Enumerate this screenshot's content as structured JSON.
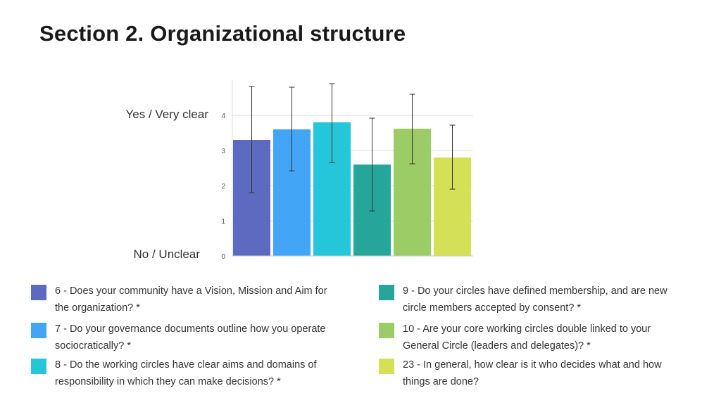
{
  "title": "Section 2. Organizational structure",
  "labels": {
    "top": "Yes / Very clear",
    "bottom": "No / Unclear"
  },
  "chart_data": {
    "type": "bar",
    "ylim": [
      0,
      4
    ],
    "yticks": [
      "0",
      "1",
      "2",
      "3",
      "4"
    ],
    "grid": true,
    "categories": [
      "6",
      "7",
      "8",
      "9",
      "10",
      "23"
    ],
    "values": [
      3.3,
      3.6,
      3.8,
      2.6,
      3.62,
      2.8
    ],
    "error_low": [
      1.8,
      2.42,
      2.65,
      1.28,
      2.62,
      1.9
    ],
    "error_high": [
      4.82,
      4.8,
      4.9,
      3.92,
      4.6,
      3.72
    ],
    "colors": [
      "#5c6bc0",
      "#42a5f5",
      "#26c6da",
      "#26a69a",
      "#9ccc65",
      "#d4e157"
    ]
  },
  "legend": [
    {
      "text": "6 - Does your community have a Vision, Mission and Aim for the organization? *",
      "color": "#5c6bc0"
    },
    {
      "text": "7 - Do your governance documents outline how you operate sociocratically? *",
      "color": "#42a5f5"
    },
    {
      "text": "8 - Do the working circles have clear aims and domains of responsibility in which they can make decisions? *",
      "color": "#26c6da"
    },
    {
      "text": "9 - Do your circles have defined membership, and are new circle members accepted by consent? *",
      "color": "#26a69a"
    },
    {
      "text": "10 - Are your core working circles double linked to your General Circle (leaders and delegates)? *",
      "color": "#9ccc65"
    },
    {
      "text": "23 - In general, how clear is it who decides what and how things are done?",
      "color": "#d4e157"
    }
  ]
}
